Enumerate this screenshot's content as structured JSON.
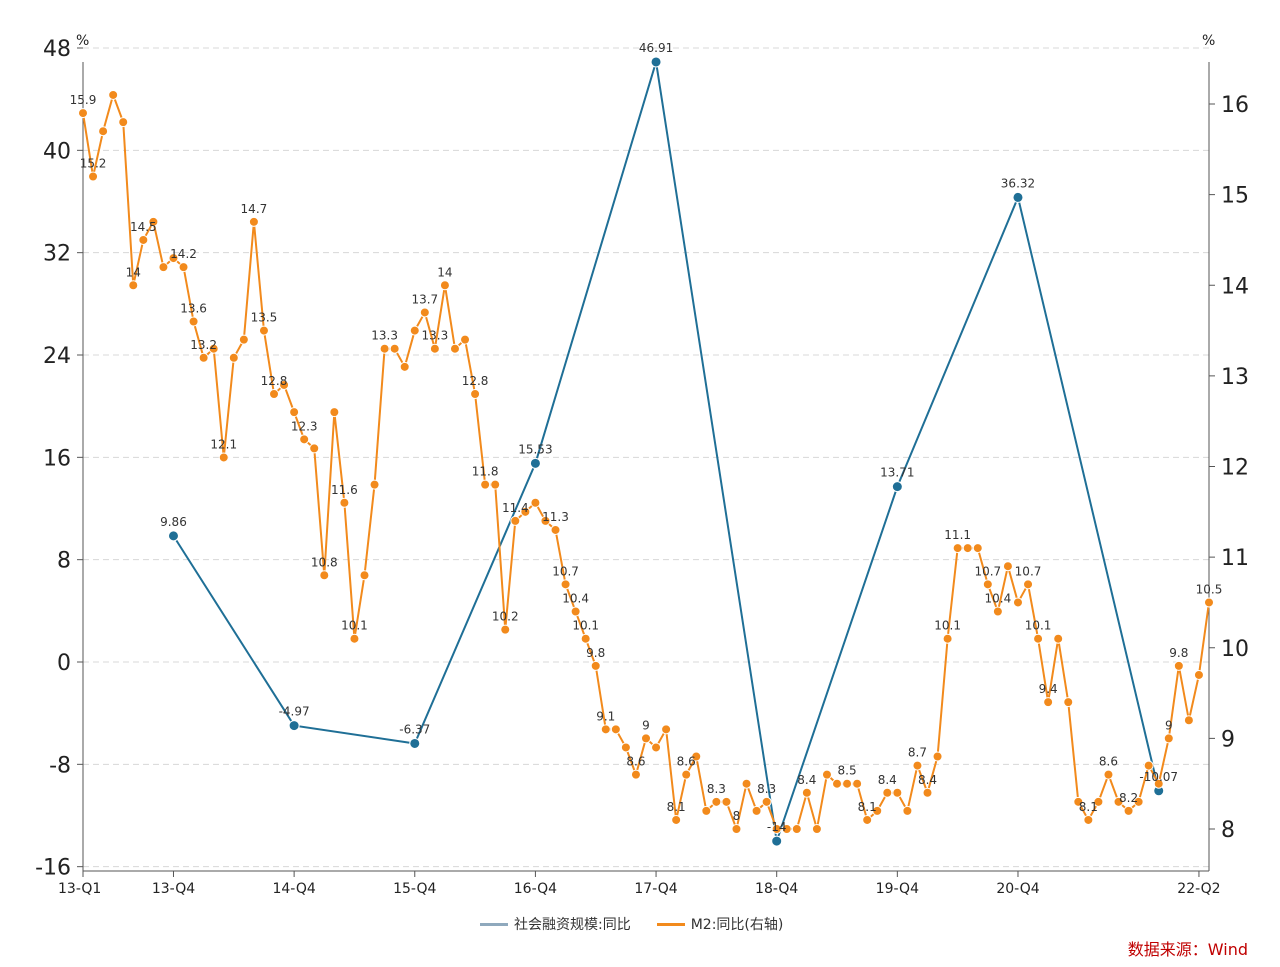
{
  "colors": {
    "tsf": "#1f6f96",
    "m2": "#f28a1c",
    "grid": "#d8d8d8",
    "source": "#c00000"
  },
  "chart_data": {
    "type": "line",
    "left_axis": {
      "unit": "%",
      "ticks": [
        48,
        40,
        32,
        24,
        16,
        8,
        0,
        -8,
        -16
      ],
      "range": [
        -18,
        48
      ]
    },
    "right_axis": {
      "unit": "%",
      "ticks": [
        16,
        15,
        14,
        13,
        12,
        11,
        10,
        9,
        8
      ],
      "range": [
        7.65,
        16.45
      ]
    },
    "x_ticks": [
      {
        "label": "13-Q1",
        "index": 0
      },
      {
        "label": "13-Q4",
        "index": 9
      },
      {
        "label": "14-Q4",
        "index": 21
      },
      {
        "label": "15-Q4",
        "index": 33
      },
      {
        "label": "16-Q4",
        "index": 45
      },
      {
        "label": "17-Q4",
        "index": 57
      },
      {
        "label": "18-Q4",
        "index": 69
      },
      {
        "label": "19-Q4",
        "index": 81
      },
      {
        "label": "20-Q4",
        "index": 93
      },
      {
        "label": "22-Q2",
        "index": 111
      }
    ],
    "series": [
      {
        "name": "社会融资规模:同比",
        "axis": "left",
        "x": [
          9,
          21,
          33,
          45,
          57,
          69,
          81,
          93,
          107
        ],
        "values": [
          9.86,
          -4.97,
          -6.37,
          15.53,
          46.91,
          -14,
          13.71,
          36.32,
          -10.07
        ],
        "labels": [
          "9.86",
          "-4.97",
          "-6.37",
          "15.53",
          "46.91",
          "-14",
          "13.71",
          "36.32",
          "-10.07"
        ]
      },
      {
        "name": "M2:同比(右轴)",
        "axis": "right",
        "values": [
          15.9,
          15.2,
          15.7,
          16.1,
          15.8,
          14.0,
          14.5,
          14.7,
          14.2,
          14.3,
          14.2,
          13.6,
          13.2,
          13.3,
          12.1,
          13.2,
          13.4,
          14.7,
          13.5,
          12.8,
          12.9,
          12.6,
          12.3,
          12.2,
          10.8,
          12.6,
          11.6,
          10.1,
          10.8,
          11.8,
          13.3,
          13.3,
          13.1,
          13.5,
          13.7,
          13.3,
          14.0,
          13.3,
          13.4,
          12.8,
          11.8,
          11.8,
          10.2,
          11.4,
          11.5,
          11.6,
          11.4,
          11.3,
          10.7,
          10.4,
          10.1,
          9.8,
          9.1,
          9.1,
          8.9,
          8.6,
          9.0,
          8.9,
          9.1,
          8.1,
          8.6,
          8.8,
          8.2,
          8.3,
          8.3,
          8.0,
          8.5,
          8.2,
          8.3,
          8.0,
          8.0,
          8.0,
          8.4,
          8.0,
          8.6,
          8.5,
          8.5,
          8.5,
          8.1,
          8.2,
          8.4,
          8.4,
          8.2,
          8.7,
          8.4,
          8.8,
          10.1,
          11.1,
          11.1,
          11.1,
          10.7,
          10.4,
          10.9,
          10.5,
          10.7,
          10.1,
          9.4,
          10.1,
          9.4,
          8.3,
          8.1,
          8.3,
          8.6,
          8.3,
          8.2,
          8.3,
          8.7,
          8.5,
          9.0,
          9.8,
          9.2,
          9.7,
          10.5
        ],
        "labels": [
          {
            "i": 0,
            "text": "15.9"
          },
          {
            "i": 1,
            "text": "15.2"
          },
          {
            "i": 5,
            "text": "14"
          },
          {
            "i": 6,
            "text": "14.5"
          },
          {
            "i": 10,
            "text": "14.2"
          },
          {
            "i": 11,
            "text": "13.6"
          },
          {
            "i": 12,
            "text": "13.2"
          },
          {
            "i": 14,
            "text": "12.1"
          },
          {
            "i": 17,
            "text": "14.7"
          },
          {
            "i": 18,
            "text": "13.5"
          },
          {
            "i": 19,
            "text": "12.8"
          },
          {
            "i": 22,
            "text": "12.3"
          },
          {
            "i": 24,
            "text": "10.8"
          },
          {
            "i": 26,
            "text": "11.6"
          },
          {
            "i": 27,
            "text": "10.1"
          },
          {
            "i": 30,
            "text": "13.3"
          },
          {
            "i": 34,
            "text": "13.7"
          },
          {
            "i": 35,
            "text": "13.3"
          },
          {
            "i": 36,
            "text": "14"
          },
          {
            "i": 39,
            "text": "12.8"
          },
          {
            "i": 40,
            "text": "11.8"
          },
          {
            "i": 42,
            "text": "10.2"
          },
          {
            "i": 43,
            "text": "11.4"
          },
          {
            "i": 47,
            "text": "11.3"
          },
          {
            "i": 48,
            "text": "10.7"
          },
          {
            "i": 49,
            "text": "10.4"
          },
          {
            "i": 50,
            "text": "10.1"
          },
          {
            "i": 51,
            "text": "9.8"
          },
          {
            "i": 52,
            "text": "9.1"
          },
          {
            "i": 55,
            "text": "8.6"
          },
          {
            "i": 56,
            "text": "9"
          },
          {
            "i": 59,
            "text": "8.1"
          },
          {
            "i": 60,
            "text": "8.6"
          },
          {
            "i": 63,
            "text": "8.3"
          },
          {
            "i": 65,
            "text": "8"
          },
          {
            "i": 68,
            "text": "8.3"
          },
          {
            "i": 72,
            "text": "8.4"
          },
          {
            "i": 76,
            "text": "8.5"
          },
          {
            "i": 78,
            "text": "8.1"
          },
          {
            "i": 80,
            "text": "8.4"
          },
          {
            "i": 83,
            "text": "8.7"
          },
          {
            "i": 84,
            "text": "8.4"
          },
          {
            "i": 86,
            "text": "10.1"
          },
          {
            "i": 87,
            "text": "11.1"
          },
          {
            "i": 90,
            "text": "10.7"
          },
          {
            "i": 91,
            "text": "10.4"
          },
          {
            "i": 94,
            "text": "10.7"
          },
          {
            "i": 95,
            "text": "10.1"
          },
          {
            "i": 96,
            "text": "9.4"
          },
          {
            "i": 100,
            "text": "8.1"
          },
          {
            "i": 102,
            "text": "8.6"
          },
          {
            "i": 104,
            "text": "8.2"
          },
          {
            "i": 108,
            "text": "9"
          },
          {
            "i": 109,
            "text": "9.8"
          },
          {
            "i": 112,
            "text": "10.5"
          }
        ]
      }
    ],
    "grid": true,
    "legend_position": "bottom-center"
  },
  "legend": {
    "tsf_label": "社会融资规模:同比",
    "m2_label": "M2:同比(右轴)"
  },
  "source": "数据来源：Wind"
}
